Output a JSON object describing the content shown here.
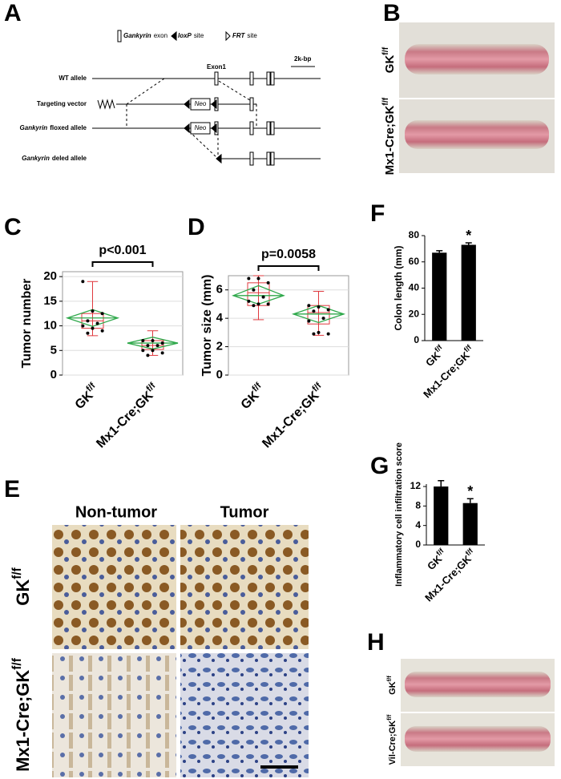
{
  "panels": {
    "letters": [
      "A",
      "B",
      "C",
      "D",
      "E",
      "F",
      "G",
      "H"
    ]
  },
  "diagram": {
    "legend": [
      {
        "italic": "Gankyrin",
        "text": "exon"
      },
      {
        "italic": "loxP",
        "text": "site"
      },
      {
        "italic": "FRT",
        "text": "site"
      }
    ],
    "exon_label": "Exon1",
    "scale": "2k-bp",
    "neo": "Neo",
    "rows": [
      {
        "text": "WT allele"
      },
      {
        "text": "Targeting vector"
      },
      {
        "italic": "Gankyrin",
        "text": "floxed allele"
      },
      {
        "italic": "Gankyrin",
        "text": "deled allele"
      }
    ]
  },
  "colon_images": {
    "rows": [
      {
        "label": "GK",
        "sup": "f/f"
      },
      {
        "label": "Mx1-Cre;GK",
        "sup": "f/f"
      }
    ]
  },
  "histology": {
    "columns": [
      "Non-tumor",
      "Tumor"
    ],
    "rows": [
      {
        "label": "GK",
        "sup": "f/f"
      },
      {
        "label": "Mx1-Cre;GK",
        "sup": "f/f"
      }
    ]
  },
  "vil_images": {
    "rows": [
      {
        "label": "GK",
        "sup": "f/f"
      },
      {
        "label": "Vil-Cre;GK",
        "sup": "f/f"
      }
    ]
  },
  "chart_data": [
    {
      "type": "box",
      "ylabel": "Tumor number",
      "annotation": "p<0.001",
      "categories": [
        "GK",
        "Mx1-Cre;GK"
      ],
      "category_superscripts": [
        "f/f",
        "f/f"
      ],
      "ylim": [
        0,
        21
      ],
      "yticks": [
        0,
        5,
        10,
        15,
        20
      ],
      "grid": true,
      "box_color": "#e0393e",
      "diamond_color": "#2ea84a",
      "groups": [
        {
          "points": [
            19,
            13,
            12.5,
            11,
            10.5,
            10,
            9.5,
            9,
            8.5
          ],
          "whisker": [
            8,
            19
          ],
          "box": [
            9.5,
            12.5
          ],
          "median": 11,
          "mean": 11.6,
          "ci": [
            9.9,
            13.3
          ]
        },
        {
          "points": [
            7,
            7,
            6.5,
            6,
            6,
            5,
            5,
            4.5,
            4
          ],
          "whisker": [
            4,
            9
          ],
          "box": [
            5.2,
            7
          ],
          "median": 6,
          "mean": 6.5,
          "ci": [
            5.3,
            7.7
          ]
        }
      ]
    },
    {
      "type": "box",
      "ylabel": "Tumor size (mm)",
      "annotation": "p=0.0058",
      "categories": [
        "GK",
        "Mx1-Cre;GK"
      ],
      "category_superscripts": [
        "f/f",
        "f/f"
      ],
      "ylim": [
        0,
        7
      ],
      "yticks": [
        0,
        2,
        4,
        6
      ],
      "grid": true,
      "box_color": "#e0393e",
      "diamond_color": "#2ea84a",
      "groups": [
        {
          "points": [
            6.8,
            6.8,
            6.5,
            6,
            5.5,
            5.2,
            5,
            5,
            4.9
          ],
          "whisker": [
            3.9,
            7
          ],
          "box": [
            4.9,
            6.5
          ],
          "median": 5.8,
          "mean": 5.6,
          "ci": [
            5,
            6.3
          ]
        },
        {
          "points": [
            4.9,
            4.8,
            4.6,
            4.5,
            4,
            3.8,
            3,
            2.9,
            2.9
          ],
          "whisker": [
            2.8,
            5.9
          ],
          "box": [
            3.6,
            4.9
          ],
          "median": 4.4,
          "mean": 4.3,
          "ci": [
            3.7,
            4.9
          ]
        }
      ]
    },
    {
      "type": "bar",
      "ylabel": "Colon length (mm)",
      "annotation": "*",
      "categories": [
        "GK",
        "Mx1-Cre;GK"
      ],
      "category_superscripts": [
        "f/f",
        "f/f"
      ],
      "values": [
        67,
        73
      ],
      "errors": [
        1.5,
        1.5
      ],
      "color": "#000000",
      "ylim": [
        0,
        80
      ],
      "yticks": [
        0,
        20,
        40,
        60,
        80
      ]
    },
    {
      "type": "bar",
      "ylabel": "Inflammatory cell infiltration score",
      "annotation": "*",
      "categories": [
        "GK",
        "Mx1-Cre;GK"
      ],
      "category_superscripts": [
        "f/f",
        "f/f"
      ],
      "values": [
        12,
        8.6
      ],
      "errors": [
        1.2,
        0.9
      ],
      "color": "#000000",
      "ylim": [
        0,
        12.5
      ],
      "yticks": [
        0,
        4,
        8,
        12
      ]
    }
  ]
}
